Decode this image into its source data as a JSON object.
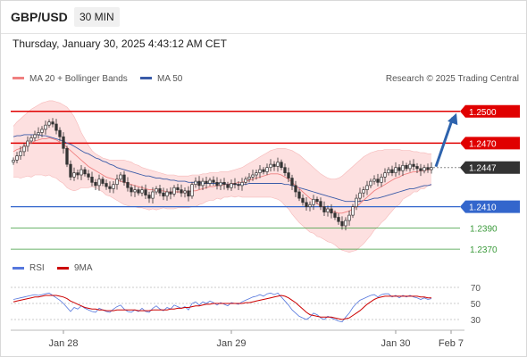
{
  "header": {
    "symbol": "GBP/USD",
    "timeframe": "30 MIN",
    "datetime": "Thursday, January 30, 2025 4:43:12 AM CET"
  },
  "legend": {
    "ma20_label": "MA 20 + Bollinger Bands",
    "ma50_label": "MA 50",
    "research": "Research © 2025 Trading Central"
  },
  "rsi_legend": {
    "rsi_label": "RSI",
    "ma9_label": "9MA"
  },
  "colors": {
    "bands_fill": "#fde0e0",
    "ma20": "#f08080",
    "ma50": "#3a5ba8",
    "resistance": "#e00000",
    "support": "#3366cc",
    "support_minor": "#3a9a3a",
    "current": "#333333",
    "arrow": "#2e63ad",
    "candle": "#333333",
    "rsi": "#5577dd",
    "rsi_ma": "#cc0000"
  },
  "chart_data": [
    {
      "type": "candlestick",
      "title": "GBP/USD",
      "x_ticks": [
        "Jan 28",
        "Jan 29",
        "Jan 30",
        "Feb 7"
      ],
      "y_range": [
        1.236,
        1.252
      ],
      "levels": [
        {
          "value": 1.25,
          "label": "1.2500",
          "kind": "resistance"
        },
        {
          "value": 1.247,
          "label": "1.2470",
          "kind": "resistance"
        },
        {
          "value": 1.2447,
          "label": "1.2447",
          "kind": "current"
        },
        {
          "value": 1.241,
          "label": "1.2410",
          "kind": "support"
        },
        {
          "value": 1.239,
          "label": "1.2390",
          "kind": "support-minor"
        },
        {
          "value": 1.237,
          "label": "1.2370",
          "kind": "support-minor"
        }
      ],
      "close": [
        1.2454,
        1.2458,
        1.2462,
        1.2467,
        1.2472,
        1.2475,
        1.2478,
        1.248,
        1.2483,
        1.2487,
        1.249,
        1.2488,
        1.2482,
        1.2476,
        1.2465,
        1.245,
        1.2438,
        1.2442,
        1.244,
        1.2445,
        1.2441,
        1.2438,
        1.2433,
        1.243,
        1.2436,
        1.2432,
        1.2429,
        1.2427,
        1.2431,
        1.2436,
        1.244,
        1.2433,
        1.2428,
        1.2424,
        1.2426,
        1.2423,
        1.2426,
        1.2421,
        1.2418,
        1.2424,
        1.2427,
        1.2423,
        1.242,
        1.2424,
        1.2422,
        1.2428,
        1.2426,
        1.2423,
        1.2425,
        1.242,
        1.2431,
        1.2434,
        1.243,
        1.2434,
        1.2432,
        1.2435,
        1.2433,
        1.243,
        1.2433,
        1.2431,
        1.2428,
        1.2432,
        1.2431,
        1.243,
        1.2433,
        1.2436,
        1.2438,
        1.244,
        1.2442,
        1.2445,
        1.2443,
        1.2447,
        1.245,
        1.2448,
        1.2452,
        1.2447,
        1.2442,
        1.2437,
        1.243,
        1.2424,
        1.2418,
        1.2414,
        1.241,
        1.2412,
        1.2417,
        1.2415,
        1.241,
        1.2405,
        1.2408,
        1.2404,
        1.24,
        1.2396,
        1.2392,
        1.2397,
        1.2402,
        1.241,
        1.2418,
        1.2423,
        1.2426,
        1.243,
        1.2434,
        1.2436,
        1.2433,
        1.2438,
        1.2442,
        1.2445,
        1.2442,
        1.2447,
        1.2444,
        1.2449,
        1.2446,
        1.245,
        1.2448,
        1.2446,
        1.2444,
        1.2447,
        1.2445,
        1.2447
      ],
      "ma20": [
        1.2462,
        1.2464,
        1.2465,
        1.2467,
        1.2469,
        1.247,
        1.2472,
        1.2473,
        1.2474,
        1.2474,
        1.2475,
        1.2474,
        1.2473,
        1.2471,
        1.2469,
        1.2466,
        1.2463,
        1.246,
        1.2457,
        1.2454,
        1.2451,
        1.2448,
        1.2446,
        1.2444,
        1.2442,
        1.244,
        1.2438,
        1.2437,
        1.2436,
        1.2435,
        1.2434,
        1.2433,
        1.2432,
        1.2431,
        1.243,
        1.2429,
        1.2428,
        1.2427,
        1.2426,
        1.2426,
        1.2425,
        1.2425,
        1.2425,
        1.2424,
        1.2424,
        1.2424,
        1.2424,
        1.2424,
        1.2424,
        1.2424,
        1.2425,
        1.2425,
        1.2426,
        1.2427,
        1.2428,
        1.2429,
        1.2429,
        1.243,
        1.243,
        1.2431,
        1.2431,
        1.2432,
        1.2432,
        1.2433,
        1.2433,
        1.2434,
        1.2435,
        1.2436,
        1.2437,
        1.2438,
        1.2439,
        1.244,
        1.2441,
        1.2441,
        1.2441,
        1.244,
        1.2438,
        1.2436,
        1.2433,
        1.243,
        1.2427,
        1.2424,
        1.2421,
        1.2418,
        1.2416,
        1.2413,
        1.2411,
        1.2409,
        1.2407,
        1.2406,
        1.2405,
        1.2404,
        1.2404,
        1.2405,
        1.2406,
        1.2408,
        1.241,
        1.2413,
        1.2416,
        1.2419,
        1.2422,
        1.2425,
        1.2427,
        1.2429,
        1.2431,
        1.2433,
        1.2435,
        1.2437,
        1.2438,
        1.244,
        1.2441,
        1.2442,
        1.2443,
        1.2443,
        1.2444,
        1.2444,
        1.2445,
        1.2445
      ],
      "bb_upper": [
        1.2486,
        1.249,
        1.2493,
        1.2496,
        1.2499,
        1.2502,
        1.2504,
        1.2506,
        1.2508,
        1.2509,
        1.251,
        1.251,
        1.2509,
        1.2508,
        1.2506,
        1.2504,
        1.25,
        1.2495,
        1.2488,
        1.248,
        1.2474,
        1.2468,
        1.2463,
        1.246,
        1.2458,
        1.2456,
        1.2455,
        1.2454,
        1.2454,
        1.2454,
        1.2454,
        1.2454,
        1.2453,
        1.2452,
        1.245,
        1.2449,
        1.2447,
        1.2446,
        1.2445,
        1.2444,
        1.2443,
        1.2442,
        1.2441,
        1.244,
        1.244,
        1.244,
        1.2439,
        1.2439,
        1.2439,
        1.2439,
        1.244,
        1.244,
        1.244,
        1.2441,
        1.2441,
        1.2442,
        1.2442,
        1.2442,
        1.2443,
        1.2443,
        1.2443,
        1.2444,
        1.2445,
        1.2446,
        1.2447,
        1.2449,
        1.2451,
        1.2453,
        1.2455,
        1.2457,
        1.2459,
        1.2461,
        1.2463,
        1.2464,
        1.2465,
        1.2465,
        1.2465,
        1.2464,
        1.2463,
        1.2461,
        1.2459,
        1.2456,
        1.2453,
        1.245,
        1.2447,
        1.2444,
        1.2441,
        1.2439,
        1.2437,
        1.2436,
        1.2436,
        1.2437,
        1.2439,
        1.2442,
        1.2445,
        1.2448,
        1.2451,
        1.2454,
        1.2457,
        1.2459,
        1.2461,
        1.2462,
        1.2463,
        1.2463,
        1.2464,
        1.2464,
        1.2464,
        1.2464,
        1.2464,
        1.2463,
        1.2463,
        1.2463,
        1.2462,
        1.2462,
        1.2461,
        1.2461,
        1.246,
        1.246
      ],
      "bb_lower": [
        1.2438,
        1.2438,
        1.2437,
        1.2438,
        1.2439,
        1.2438,
        1.244,
        1.244,
        1.244,
        1.2439,
        1.244,
        1.2438,
        1.2437,
        1.2434,
        1.2432,
        1.2428,
        1.2426,
        1.2425,
        1.2426,
        1.2428,
        1.2428,
        1.2428,
        1.2429,
        1.2428,
        1.2426,
        1.2424,
        1.2421,
        1.242,
        1.2418,
        1.2416,
        1.2414,
        1.2412,
        1.2411,
        1.241,
        1.241,
        1.2409,
        1.2409,
        1.2408,
        1.2407,
        1.2408,
        1.2407,
        1.2408,
        1.2409,
        1.2408,
        1.2408,
        1.2408,
        1.2409,
        1.2409,
        1.2409,
        1.2409,
        1.241,
        1.241,
        1.2412,
        1.2413,
        1.2415,
        1.2416,
        1.2416,
        1.2418,
        1.2417,
        1.2419,
        1.2419,
        1.242,
        1.2419,
        1.242,
        1.2419,
        1.2419,
        1.2419,
        1.2419,
        1.2419,
        1.2419,
        1.2419,
        1.2419,
        1.2419,
        1.2418,
        1.2417,
        1.2415,
        1.2411,
        1.2408,
        1.2403,
        1.2399,
        1.2395,
        1.2392,
        1.2389,
        1.2386,
        1.2385,
        1.2382,
        1.2381,
        1.2379,
        1.2377,
        1.2376,
        1.2374,
        1.2371,
        1.2369,
        1.2368,
        1.2367,
        1.2368,
        1.2369,
        1.2372,
        1.2375,
        1.2379,
        1.2383,
        1.2388,
        1.2391,
        1.2395,
        1.2398,
        1.2402,
        1.2406,
        1.241,
        1.2412,
        1.2417,
        1.2419,
        1.2421,
        1.2424,
        1.2424,
        1.2427,
        1.2427,
        1.243,
        1.243
      ],
      "ma50": [
        1.2476,
        1.2477,
        1.2477,
        1.2478,
        1.2478,
        1.2478,
        1.2478,
        1.2478,
        1.2477,
        1.2477,
        1.2476,
        1.2475,
        1.2474,
        1.2473,
        1.2472,
        1.247,
        1.2469,
        1.2467,
        1.2465,
        1.2463,
        1.2461,
        1.246,
        1.2458,
        1.2456,
        1.2455,
        1.2453,
        1.2452,
        1.245,
        1.2449,
        1.2447,
        1.2446,
        1.2445,
        1.2444,
        1.2443,
        1.2442,
        1.2441,
        1.244,
        1.2439,
        1.2439,
        1.2438,
        1.2437,
        1.2437,
        1.2436,
        1.2436,
        1.2435,
        1.2435,
        1.2434,
        1.2434,
        1.2434,
        1.2433,
        1.2433,
        1.2433,
        1.2433,
        1.2432,
        1.2432,
        1.2432,
        1.2432,
        1.2432,
        1.2432,
        1.2432,
        1.2431,
        1.2431,
        1.2431,
        1.2431,
        1.2431,
        1.2431,
        1.2432,
        1.2432,
        1.2432,
        1.2432,
        1.2432,
        1.2432,
        1.2432,
        1.2432,
        1.2432,
        1.2432,
        1.2431,
        1.2431,
        1.243,
        1.2429,
        1.2428,
        1.2427,
        1.2426,
        1.2425,
        1.2424,
        1.2423,
        1.2422,
        1.2421,
        1.242,
        1.2419,
        1.2418,
        1.2417,
        1.2416,
        1.2415,
        1.2415,
        1.2415,
        1.2415,
        1.2415,
        1.2416,
        1.2416,
        1.2417,
        1.2418,
        1.2418,
        1.2419,
        1.242,
        1.2421,
        1.2422,
        1.2423,
        1.2424,
        1.2425,
        1.2426,
        1.2427,
        1.2427,
        1.2428,
        1.2429,
        1.243,
        1.243,
        1.2431
      ],
      "forecast": {
        "from": 1.2447,
        "to": 1.25
      }
    },
    {
      "type": "line",
      "title": "RSI",
      "y_ticks": [
        70,
        50,
        30
      ],
      "y_range": [
        20,
        80
      ],
      "series": [
        {
          "name": "RSI",
          "values": [
            55,
            56,
            57,
            58,
            59,
            60,
            61,
            60,
            61,
            62,
            63,
            60,
            57,
            54,
            50,
            45,
            40,
            45,
            43,
            47,
            44,
            42,
            40,
            39,
            44,
            42,
            40,
            39,
            43,
            46,
            48,
            43,
            40,
            39,
            42,
            40,
            44,
            40,
            39,
            44,
            47,
            43,
            41,
            45,
            43,
            48,
            46,
            44,
            46,
            42,
            50,
            52,
            48,
            52,
            50,
            53,
            51,
            48,
            51,
            49,
            47,
            51,
            50,
            49,
            52,
            54,
            56,
            58,
            59,
            61,
            59,
            62,
            63,
            61,
            63,
            58,
            53,
            48,
            42,
            38,
            34,
            32,
            30,
            33,
            38,
            36,
            32,
            30,
            34,
            32,
            30,
            28,
            27,
            33,
            38,
            45,
            50,
            54,
            56,
            58,
            60,
            61,
            58,
            61,
            62,
            62,
            58,
            60,
            57,
            60,
            58,
            60,
            58,
            57,
            55,
            57,
            55,
            56
          ]
        },
        {
          "name": "9MA",
          "values": [
            52,
            53,
            54,
            55,
            56,
            57,
            58,
            58,
            59,
            60,
            60,
            60,
            60,
            59,
            58,
            56,
            53,
            51,
            49,
            47,
            45,
            44,
            43,
            43,
            42,
            42,
            41,
            41,
            41,
            42,
            42,
            42,
            42,
            42,
            42,
            41,
            41,
            41,
            41,
            42,
            42,
            42,
            42,
            42,
            43,
            43,
            44,
            44,
            45,
            45,
            46,
            47,
            47,
            48,
            49,
            49,
            50,
            50,
            50,
            50,
            50,
            50,
            50,
            50,
            50,
            51,
            51,
            52,
            53,
            54,
            55,
            56,
            57,
            58,
            59,
            60,
            59,
            57,
            54,
            51,
            47,
            43,
            39,
            36,
            35,
            34,
            33,
            33,
            33,
            33,
            32,
            31,
            30,
            31,
            32,
            35,
            38,
            41,
            45,
            49,
            52,
            55,
            57,
            58,
            59,
            59,
            59,
            59,
            59,
            59,
            59,
            59,
            59,
            59,
            58,
            58,
            57,
            57
          ]
        }
      ]
    }
  ]
}
